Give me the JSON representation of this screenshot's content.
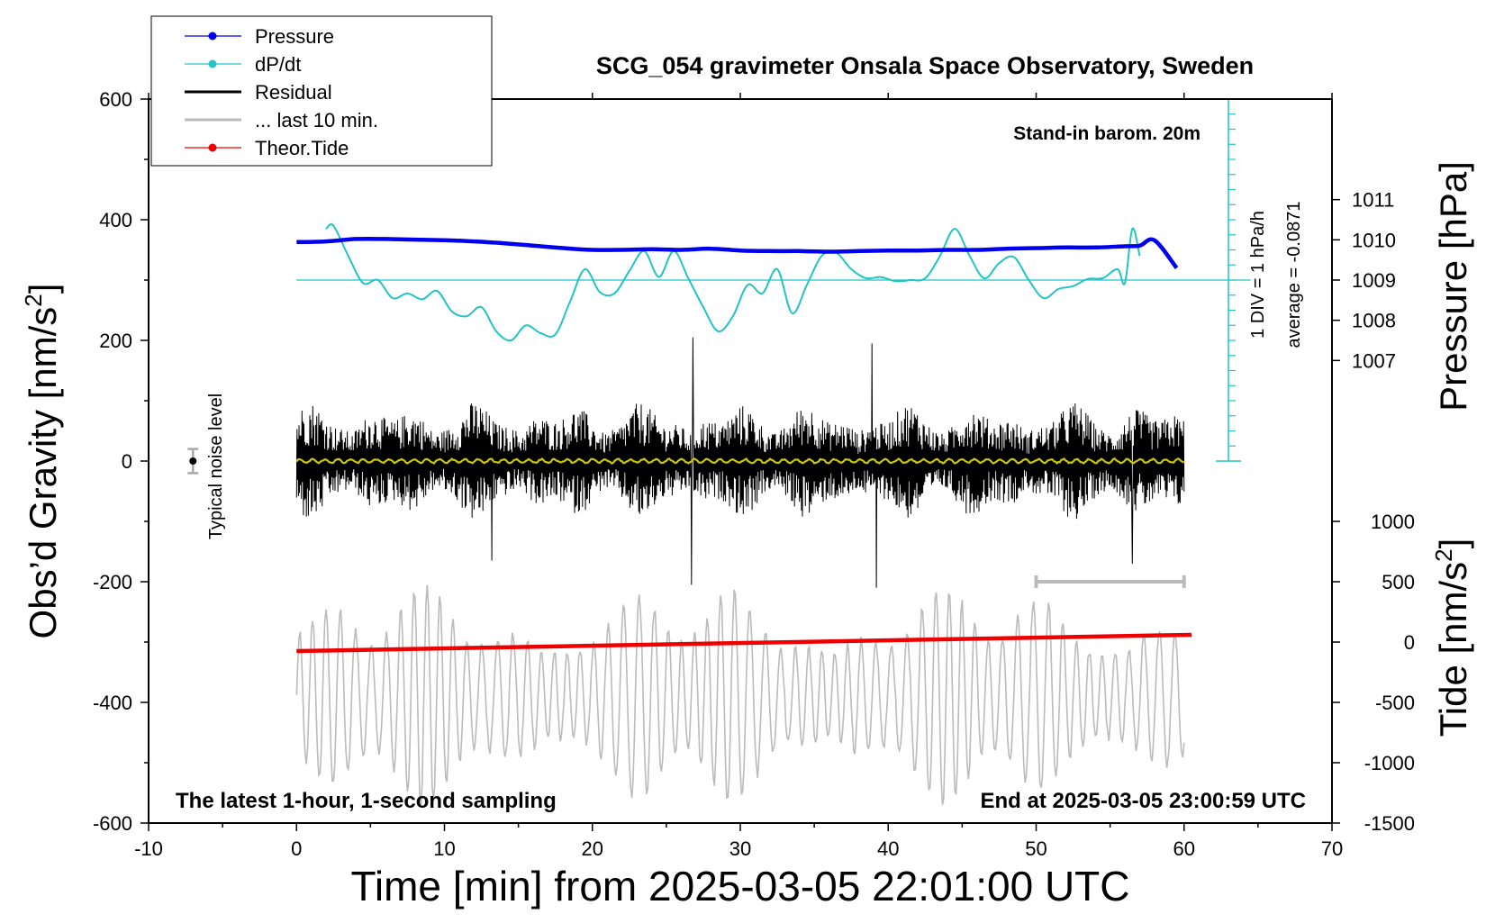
{
  "chart_data": {
    "type": "line",
    "title": "SCG_054 gravimeter Onsala Space Observatory, Sweden",
    "xlabel": "Time [min] from 2025-03-05 22:01:00 UTC",
    "ylabel_left": "Obs’d Gravity [nm/s",
    "ylabel_left_sup": "2",
    "ylabel_left_close": "]",
    "ylabel_right_top": "Pressure [hPa]",
    "ylabel_right_bottom": "Tide [nm/s",
    "ylabel_right_bottom_sup": "2",
    "ylabel_right_bottom_close": "]",
    "xlim": [
      -10,
      70
    ],
    "ylim": [
      -600,
      600
    ],
    "x_ticks": [
      -10,
      0,
      10,
      20,
      30,
      40,
      50,
      60,
      70
    ],
    "y_ticks": [
      -600,
      -400,
      -200,
      0,
      200,
      400,
      600
    ],
    "pressure_axis": {
      "ticks": [
        1007,
        1008,
        1009,
        1010,
        1011
      ],
      "value_at_300": 1009,
      "units_per_hPa": 100
    },
    "tide_axis": {
      "ticks": [
        -1500,
        -1000,
        -500,
        0,
        500,
        1000
      ],
      "value_at_minus600": -1500,
      "gravity_per_unit": 0.2
    },
    "dpdt_scale": {
      "label": "1 DIV = 1 hPa/h",
      "average_label": "average = -0.0871",
      "x": 63,
      "baseline": 300,
      "top": 600,
      "bottom": 0,
      "div": 25
    },
    "noise_bar": {
      "x": -7,
      "center": 0,
      "half_range": 20,
      "label": "Typical noise level"
    },
    "last10_bar": {
      "x_start": 50,
      "x_end": 60,
      "y": -200
    },
    "annotations": {
      "barometer": "Stand-in barom. 20m",
      "bottom_left": "The latest 1-hour, 1-second sampling",
      "bottom_right": "End at 2025-03-05 23:00:59 UTC"
    },
    "legend": [
      {
        "label": "Pressure",
        "color": "#0000ee",
        "marker": true
      },
      {
        "label": "dP/dt",
        "color": "#22c4c4",
        "marker": true
      },
      {
        "label": "Residual",
        "color": "#000000",
        "marker": false
      },
      {
        "label": "... last 10 min.",
        "color": "#bbbbbb",
        "marker": false
      },
      {
        "label": "Theor.Tide",
        "color": "#ee0000",
        "marker": true
      }
    ],
    "series": [
      {
        "name": "Pressure",
        "color": "#0000ee",
        "x": [
          0,
          2,
          4,
          6,
          8,
          10,
          12,
          14,
          16,
          18,
          20,
          22,
          24,
          26,
          28,
          30,
          32,
          34,
          36,
          38,
          40,
          42,
          44,
          46,
          48,
          50,
          52,
          54,
          56,
          57,
          58,
          59.5
        ],
        "y": [
          363,
          364,
          368,
          368,
          367,
          366,
          364,
          361,
          357,
          353,
          350,
          350,
          351,
          350,
          352,
          349,
          348,
          348,
          347,
          348,
          349,
          349,
          350,
          350,
          352,
          353,
          354,
          354,
          356,
          357,
          366,
          320
        ]
      },
      {
        "name": "dP/dt",
        "color": "#22c4c4",
        "x": [
          2,
          2.5,
          3.5,
          4.5,
          5.5,
          6.5,
          7.5,
          8.5,
          9.5,
          10.5,
          11.5,
          12.5,
          13.5,
          14.5,
          15.5,
          16.5,
          17.5,
          18.5,
          19.5,
          20.5,
          21.5,
          22.5,
          23.5,
          24.5,
          25.5,
          26.5,
          27.5,
          28.5,
          29.5,
          30.5,
          31.5,
          32.5,
          33.5,
          34.5,
          35.5,
          36.5,
          37.5,
          38.5,
          39.5,
          40.5,
          41.5,
          42.5,
          43.5,
          44.5,
          45.5,
          46.5,
          47.5,
          48.5,
          49.5,
          50.5,
          51.5,
          52.5,
          53.5,
          54.5,
          55.5,
          56.0,
          56.5,
          57.0
        ],
        "y": [
          385,
          390,
          340,
          295,
          300,
          270,
          278,
          268,
          282,
          248,
          240,
          255,
          215,
          200,
          225,
          212,
          210,
          265,
          318,
          280,
          278,
          315,
          348,
          305,
          348,
          302,
          255,
          215,
          240,
          292,
          278,
          318,
          245,
          292,
          340,
          345,
          318,
          303,
          305,
          298,
          300,
          303,
          340,
          385,
          340,
          303,
          328,
          338,
          300,
          270,
          285,
          290,
          302,
          303,
          318,
          295,
          385,
          340
        ]
      },
      {
        "name": "Residual",
        "color": "#000000",
        "description": "1-second samples, envelope about +/-100 nm/s2 with spikes to +200 / -210",
        "x_range": [
          0,
          60
        ],
        "amplitude": 100
      },
      {
        "name": "... last 10 min.",
        "color": "#bbbbbb",
        "description": "previous-window residual, offset to -390 nm/s2, amplitude about +/-190",
        "x_range": [
          0,
          60
        ],
        "offset": -390,
        "amplitude": 190
      },
      {
        "name": "Theor.Tide",
        "color": "#ee0000",
        "x": [
          0,
          60.5
        ],
        "y": [
          -315,
          -288
        ]
      },
      {
        "name": "Residual mean",
        "color": "#c8c800",
        "x_range": [
          0,
          60
        ],
        "y": 0
      }
    ]
  }
}
